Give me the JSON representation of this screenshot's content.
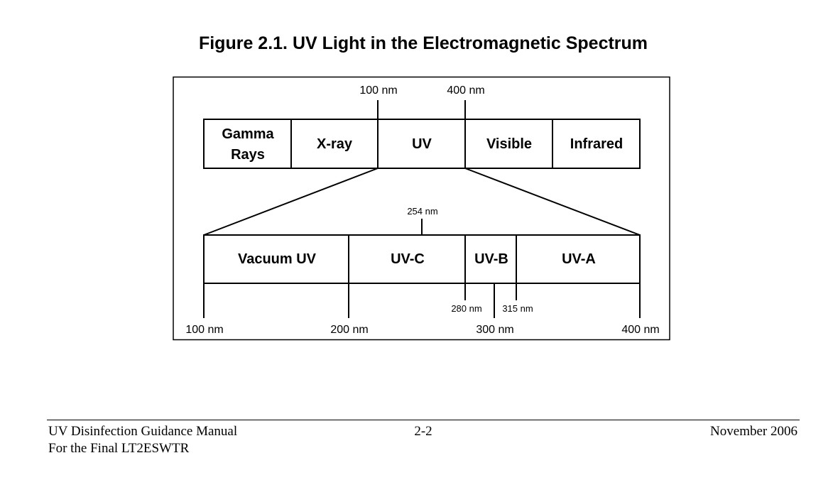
{
  "figure_title": "Figure 2.1. UV Light in the Electromagnetic Spectrum",
  "spectrum": {
    "top_ticks": [
      "100 nm",
      "400 nm"
    ],
    "bands": [
      {
        "line1": "Gamma",
        "line2": "Rays"
      },
      {
        "line1": "X-ray"
      },
      {
        "line1": "UV"
      },
      {
        "line1": "Visible"
      },
      {
        "line1": "Infrared"
      }
    ]
  },
  "uv_detail": {
    "marker": "254 nm",
    "bands": [
      "Vacuum UV",
      "UV-C",
      "UV-B",
      "UV-A"
    ],
    "inner_ticks": [
      "280 nm",
      "315 nm"
    ],
    "scale": [
      "100 nm",
      "200 nm",
      "300 nm",
      "400 nm"
    ]
  },
  "footer": {
    "title_line1": "UV Disinfection Guidance Manual",
    "title_line2": "For the Final LT2ESWTR",
    "page": "2-2",
    "date": "November 2006"
  }
}
